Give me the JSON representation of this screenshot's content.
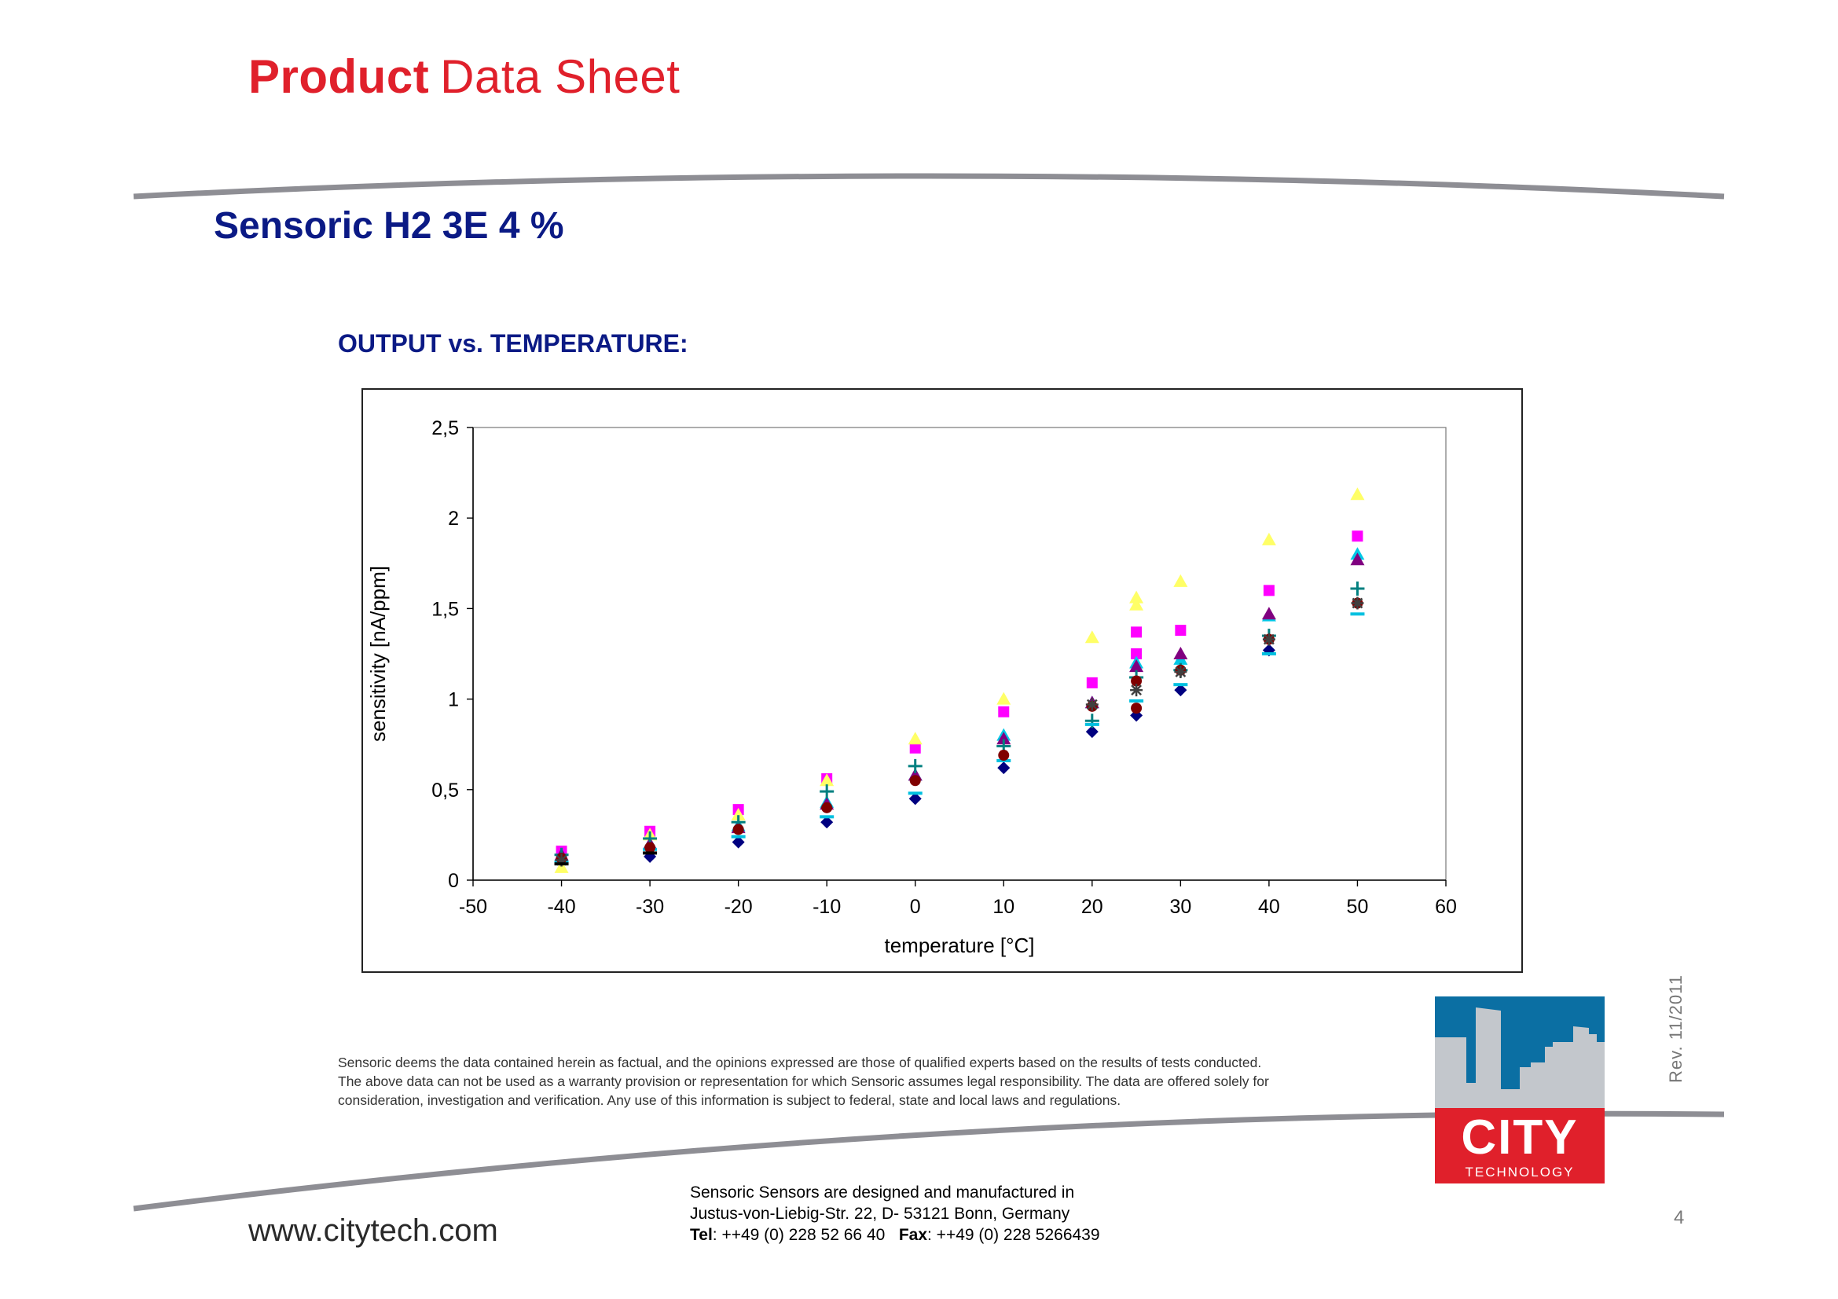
{
  "header": {
    "brand_bold": "Product",
    "brand_light": "Data Sheet",
    "product_name": "Sensoric H2 3E 4 %",
    "section_title": "OUTPUT vs. TEMPERATURE:"
  },
  "chart_data": {
    "type": "scatter",
    "title": "",
    "xlabel": "temperature [°C]",
    "ylabel": "sensitivity [nA/ppm]",
    "xlim": [
      -50,
      60
    ],
    "ylim": [
      0,
      2.5
    ],
    "x_ticks": [
      -50,
      -40,
      -30,
      -20,
      -10,
      0,
      10,
      20,
      30,
      40,
      50,
      60
    ],
    "y_ticks": [
      0,
      0.5,
      1,
      1.5,
      2,
      2.5
    ],
    "x_tick_labels": [
      "-50",
      "-40",
      "-30",
      "-20",
      "-10",
      "0",
      "10",
      "20",
      "30",
      "40",
      "50",
      "60"
    ],
    "y_tick_labels": [
      "0",
      "0,5",
      "1",
      "1,5",
      "2",
      "2,5"
    ],
    "grid": false,
    "legend": "none",
    "series": [
      {
        "marker": "diamond",
        "color": "#000080",
        "x": [
          -40,
          -30,
          -20,
          -10,
          0,
          10,
          20,
          25,
          30,
          40
        ],
        "y": [
          0.11,
          0.13,
          0.21,
          0.32,
          0.45,
          0.62,
          0.82,
          0.91,
          1.05,
          1.27
        ]
      },
      {
        "marker": "square",
        "color": "#ff00ff",
        "x": [
          -40,
          -30,
          -20,
          -10,
          0,
          10,
          20,
          25,
          25,
          30,
          40,
          50
        ],
        "y": [
          0.16,
          0.27,
          0.39,
          0.56,
          0.73,
          0.93,
          1.09,
          1.25,
          1.37,
          1.38,
          1.6,
          1.9
        ]
      },
      {
        "marker": "triangle",
        "color": "#ffff66",
        "x": [
          -40,
          -30,
          -20,
          -10,
          0,
          10,
          20,
          25,
          25,
          30,
          40,
          50
        ],
        "y": [
          0.07,
          0.25,
          0.36,
          0.55,
          0.78,
          1.0,
          1.34,
          1.52,
          1.56,
          1.65,
          1.88,
          2.13
        ]
      },
      {
        "marker": "triangle",
        "color": "#00c8e6",
        "x": [
          -40,
          -30,
          -20,
          -10,
          0,
          10,
          20,
          25,
          30,
          40,
          50
        ],
        "y": [
          0.12,
          0.2,
          0.3,
          0.43,
          0.58,
          0.8,
          0.98,
          1.2,
          1.22,
          1.46,
          1.8
        ]
      },
      {
        "marker": "triangle",
        "color": "#800080",
        "x": [
          -40,
          -30,
          -20,
          -10,
          0,
          10,
          20,
          25,
          30,
          40,
          50
        ],
        "y": [
          0.14,
          0.2,
          0.29,
          0.42,
          0.58,
          0.78,
          0.98,
          1.18,
          1.25,
          1.47,
          1.77
        ]
      },
      {
        "marker": "plus",
        "color": "#008080",
        "x": [
          -40,
          -30,
          -20,
          -10,
          0,
          10,
          20,
          25,
          30,
          40,
          50
        ],
        "y": [
          0.14,
          0.23,
          0.32,
          0.49,
          0.63,
          0.74,
          0.88,
          1.12,
          1.16,
          1.35,
          1.61
        ]
      },
      {
        "marker": "dash",
        "color": "#00c0e0",
        "x": [
          -40,
          -30,
          -20,
          -10,
          0,
          10,
          20,
          25,
          30,
          40,
          50
        ],
        "y": [
          0.1,
          0.17,
          0.24,
          0.35,
          0.48,
          0.66,
          0.86,
          0.99,
          1.08,
          1.25,
          1.47
        ]
      },
      {
        "marker": "circle",
        "color": "#800000",
        "x": [
          -40,
          -30,
          -20,
          -10,
          0,
          10,
          20,
          25,
          25,
          30,
          40,
          50
        ],
        "y": [
          0.12,
          0.18,
          0.28,
          0.4,
          0.55,
          0.69,
          0.96,
          0.95,
          1.1,
          1.16,
          1.33,
          1.53
        ]
      },
      {
        "marker": "star",
        "color": "#404040",
        "x": [
          -40,
          20,
          25,
          30,
          40,
          50
        ],
        "y": [
          0.11,
          0.97,
          1.05,
          1.15,
          1.33,
          1.53
        ]
      },
      {
        "marker": "dash",
        "color": "#000000",
        "x": [
          -40,
          -30
        ],
        "y": [
          0.09,
          0.15
        ]
      }
    ]
  },
  "disclaimer": {
    "lines": [
      "Sensoric deems the data contained herein as factual, and the opinions expressed are those of qualified experts based on the results of tests conducted.",
      "The above data can not be used as a warranty provision or representation for which Sensoric assumes legal responsibility. The data are offered solely for",
      "consideration, investigation and verification. Any use of this information is subject to federal, state and local laws and regulations."
    ]
  },
  "revision": "Rev. 11/2011",
  "logo": {
    "name": "CITY",
    "sub": "TECHNOLOGY"
  },
  "footer": {
    "website": "www.citytech.com",
    "address_line1": "Sensoric Sensors are designed and manufactured in",
    "address_line2": "Justus-von-Liebig-Str. 22, D- 53121 Bonn, Germany",
    "tel_label": "Tel",
    "tel_value": ": ++49 (0) 228 52 66 40",
    "fax_label": "Fax",
    "fax_value": ": ++49 (0) 228 5266439",
    "page_number": "4"
  },
  "colors": {
    "brand_red": "#e0202b",
    "title_blue": "#0b1a85",
    "logo_sky": "#0b6fa3",
    "logo_red": "#e0202b"
  }
}
